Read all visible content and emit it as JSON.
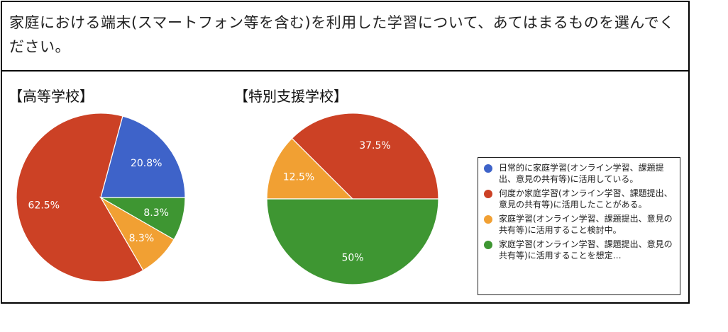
{
  "question": "家庭における端末(スマートフォン等を含む)を利用した学習について、あてはまるものを選んでください。",
  "legend": [
    {
      "label": "日常的に家庭学習(オンライン学習、課題提出、意見の共有等)に活用している。",
      "color": "#3e63c9"
    },
    {
      "label": "何度か家庭学習(オンライン学習、課題提出、意見の共有等)に活用したことがある。",
      "color": "#cc4125"
    },
    {
      "label": "家庭学習(オンライン学習、課題提出、意見の共有等)に活用すること検討中。",
      "color": "#f1a033"
    },
    {
      "label": "家庭学習(オンライン学習、課題提出、意見の共有等)に活用することを想定…",
      "color": "#3e9632"
    }
  ],
  "chart_data": [
    {
      "type": "pie",
      "title": "【高等学校】",
      "categories": [
        "日常的に家庭学習に活用している",
        "何度か家庭学習に活用したことがある",
        "活用すること検討中",
        "活用することを想定…"
      ],
      "values": [
        20.8,
        62.5,
        8.3,
        8.3
      ],
      "labels": [
        "20.8%",
        "62.5%",
        "8.3%",
        "8.3%"
      ],
      "colors": [
        "#3e63c9",
        "#cc4125",
        "#f1a033",
        "#3e9632"
      ]
    },
    {
      "type": "pie",
      "title": "【特別支援学校】",
      "categories": [
        "日常的に家庭学習に活用している",
        "何度か家庭学習に活用したことがある",
        "活用すること検討中",
        "活用することを想定…"
      ],
      "values": [
        0,
        37.5,
        12.5,
        50
      ],
      "labels": [
        "",
        "37.5%",
        "12.5%",
        "50%"
      ],
      "colors": [
        "#3e63c9",
        "#cc4125",
        "#f1a033",
        "#3e9632"
      ]
    }
  ]
}
